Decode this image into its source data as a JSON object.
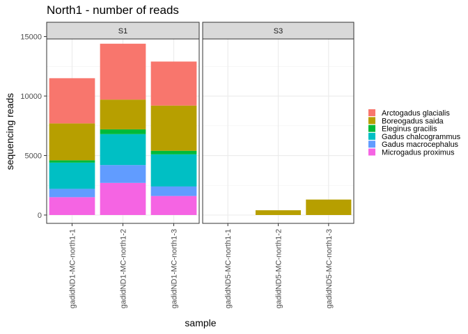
{
  "chart_data": {
    "type": "bar",
    "stacked": true,
    "title": "North1 - number of reads",
    "xlabel": "sample",
    "ylabel": "sequencing reads",
    "ylim": [
      0,
      15500
    ],
    "y_ticks": [
      0,
      5000,
      10000,
      15000
    ],
    "y_tick_labels": [
      "0",
      "5000",
      "10000",
      "15000"
    ],
    "grid": true,
    "legend_position": "right",
    "series": [
      {
        "name": "Arctogadus glacialis",
        "color": "#F8766D"
      },
      {
        "name": "Boreogadus saida",
        "color": "#B79F00"
      },
      {
        "name": "Eleginus gracilis",
        "color": "#00BA38"
      },
      {
        "name": "Gadus chalcogrammus",
        "color": "#00BFC4"
      },
      {
        "name": "Gadus macrocephalus",
        "color": "#619CFF"
      },
      {
        "name": "Microgadus proximus",
        "color": "#F564E3"
      }
    ],
    "facets": [
      {
        "label": "S1",
        "categories": [
          "gadidND1-MC-north1-1",
          "gadidND1-MC-north1-2",
          "gadidND1-MC-north1-3"
        ],
        "values": {
          "Arctogadus glacialis": [
            3800,
            4700,
            3700
          ],
          "Boreogadus saida": [
            3100,
            2500,
            3800
          ],
          "Eleginus gracilis": [
            200,
            400,
            300
          ],
          "Gadus chalcogrammus": [
            2200,
            2600,
            2700
          ],
          "Gadus macrocephalus": [
            700,
            1500,
            800
          ],
          "Microgadus proximus": [
            1500,
            2700,
            1600
          ]
        }
      },
      {
        "label": "S3",
        "categories": [
          "gadidND5-MC-north1-1",
          "gadidND5-MC-north1-2",
          "gadidND5-MC-north1-3"
        ],
        "values": {
          "Arctogadus glacialis": [
            0,
            0,
            0
          ],
          "Boreogadus saida": [
            0,
            400,
            1300
          ],
          "Eleginus gracilis": [
            0,
            0,
            0
          ],
          "Gadus chalcogrammus": [
            0,
            0,
            0
          ],
          "Gadus macrocephalus": [
            0,
            0,
            0
          ],
          "Microgadus proximus": [
            0,
            0,
            0
          ]
        }
      }
    ]
  }
}
